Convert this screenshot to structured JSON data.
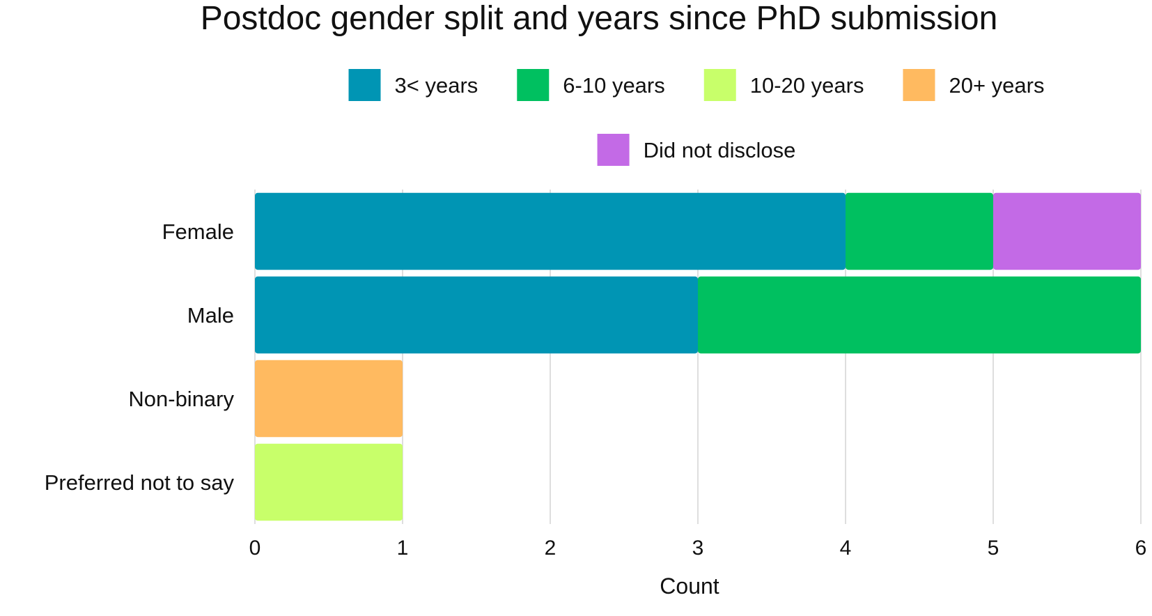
{
  "chart_data": {
    "type": "bar",
    "orientation": "horizontal",
    "stacked": true,
    "title": "Postdoc gender split and years since PhD submission",
    "xlabel": "Count",
    "ylabel": "",
    "xlim": [
      0,
      6
    ],
    "x_ticks": [
      0,
      1,
      2,
      3,
      4,
      5,
      6
    ],
    "grid": true,
    "legend_position": "top",
    "categories": [
      "Female",
      "Male",
      "Non-binary",
      "Preferred not to say"
    ],
    "series": [
      {
        "name": "3< years",
        "color": "#0095b4",
        "values": [
          4,
          3,
          0,
          0
        ]
      },
      {
        "name": "6-10 years",
        "color": "#00c060",
        "values": [
          1,
          3,
          0,
          0
        ]
      },
      {
        "name": "10-20 years",
        "color": "#c8ff6a",
        "values": [
          0,
          0,
          0,
          1
        ]
      },
      {
        "name": "20+ years",
        "color": "#ffba60",
        "values": [
          0,
          0,
          1,
          0
        ]
      },
      {
        "name": "Did not disclose",
        "color": "#c36ae6",
        "values": [
          1,
          0,
          0,
          0
        ]
      }
    ]
  }
}
